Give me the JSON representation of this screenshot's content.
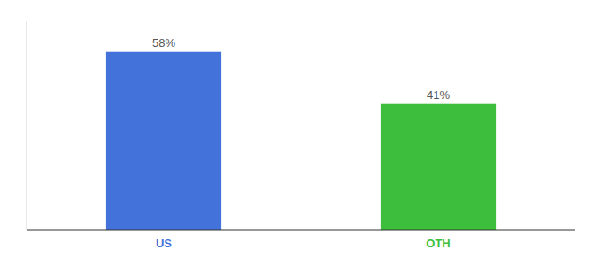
{
  "chart_data": {
    "type": "bar",
    "categories": [
      "US",
      "OTH"
    ],
    "values": [
      58,
      41
    ],
    "value_labels": [
      "58%",
      "41%"
    ],
    "colors": [
      "#4472db",
      "#3dbf3d"
    ],
    "ylim": [
      0,
      68
    ],
    "data_labels": true,
    "tick_labels": "x",
    "grid": false
  }
}
